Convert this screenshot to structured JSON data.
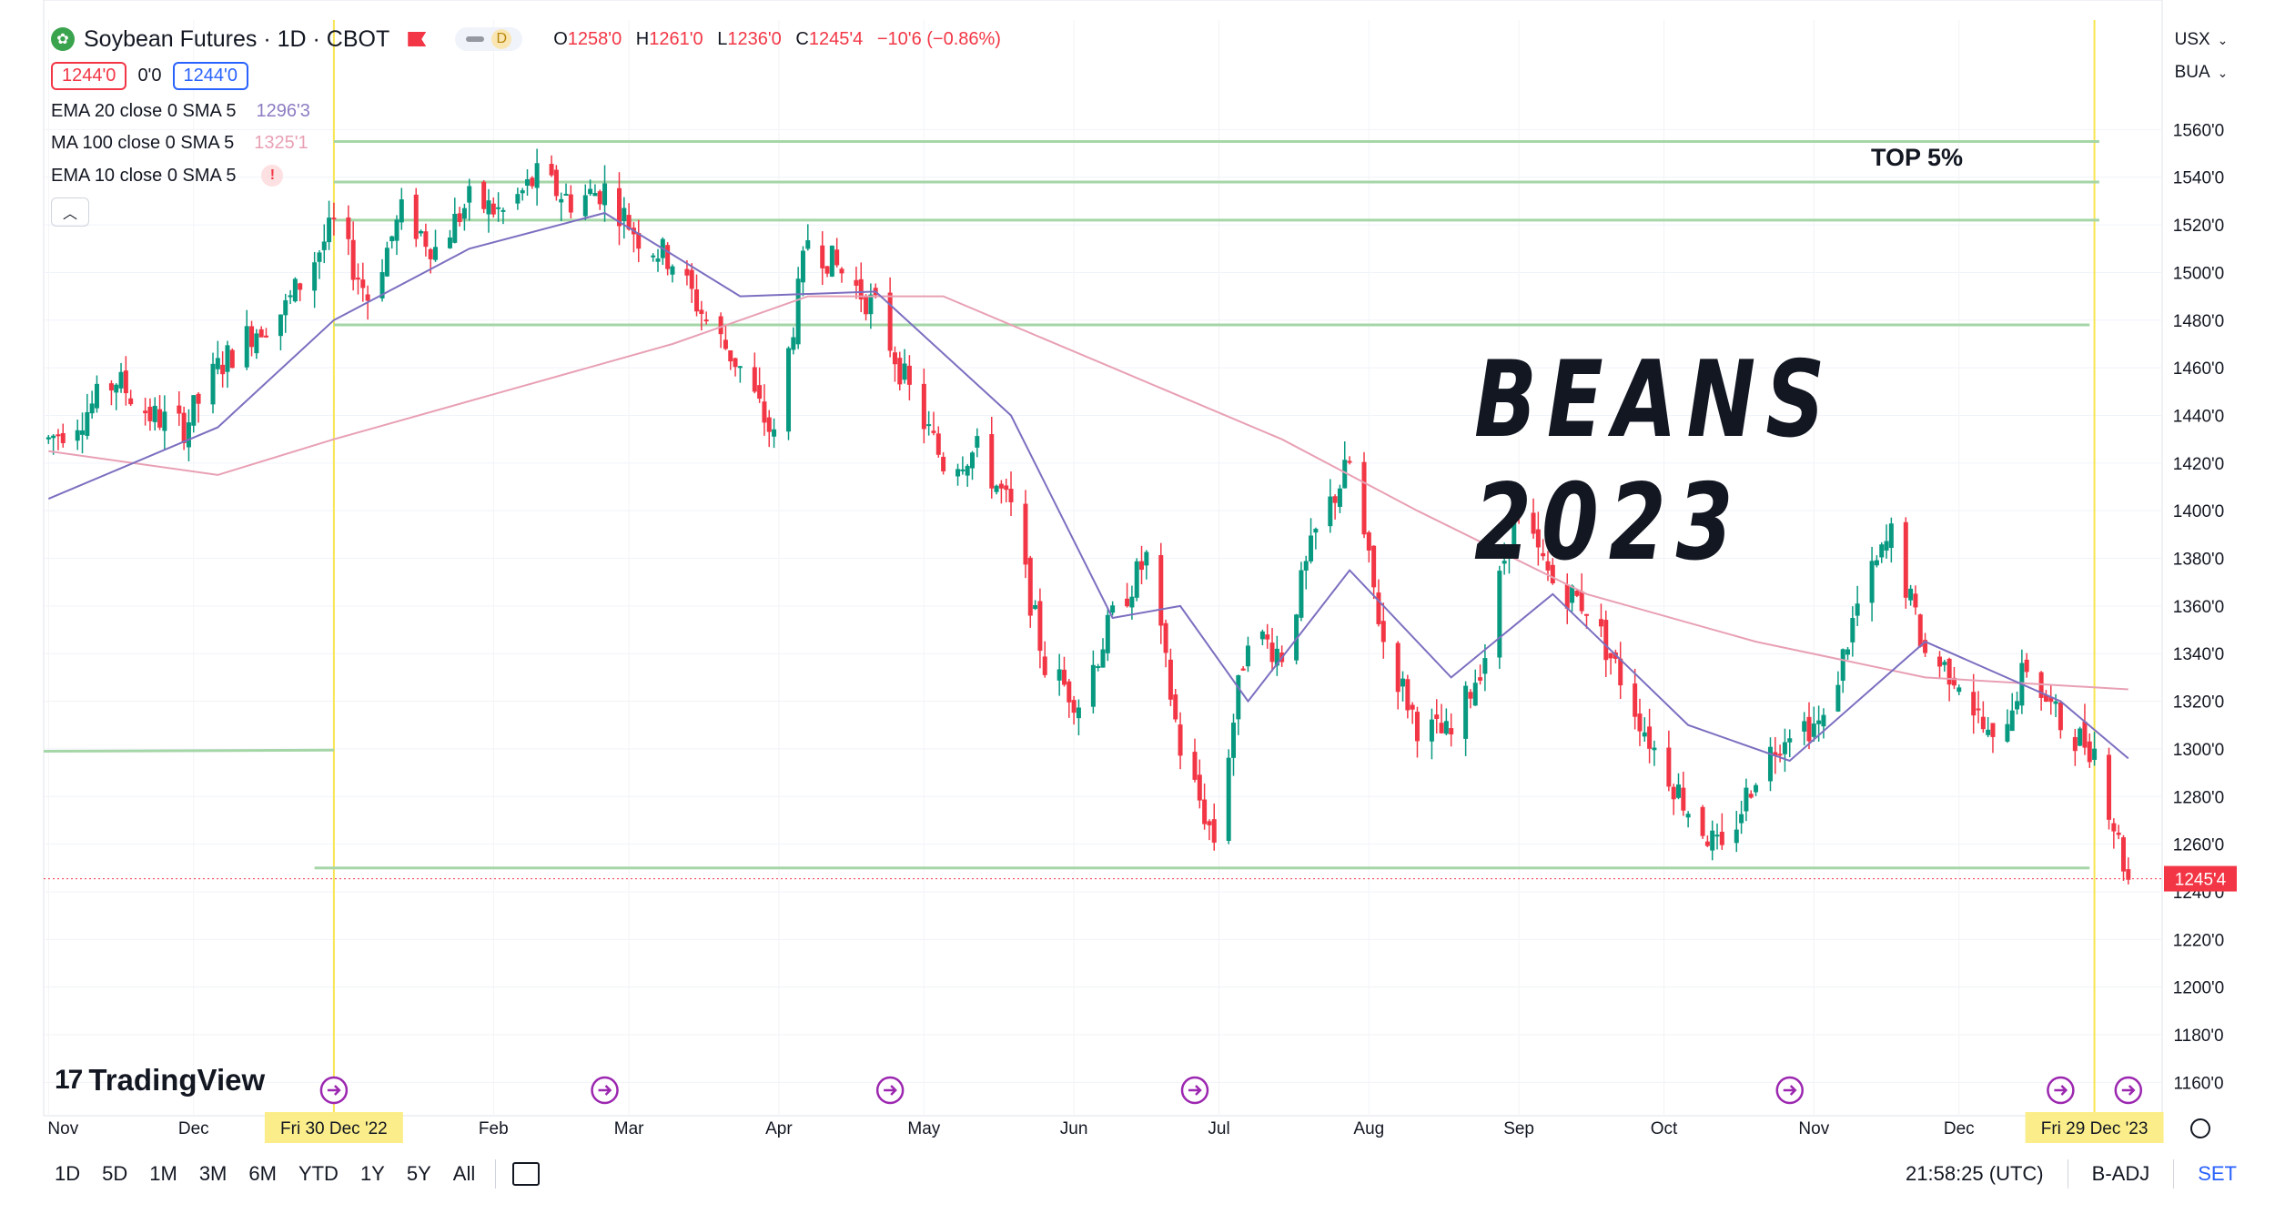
{
  "header": {
    "symbol_logo": "soybean-leaf-icon",
    "title": "Soybean Futures · 1D · CBOT",
    "pill_letter": "D",
    "ohlc": [
      {
        "k": "O",
        "v": "1258'0"
      },
      {
        "k": "H",
        "v": "1261'0"
      },
      {
        "k": "L",
        "v": "1236'0"
      },
      {
        "k": "C",
        "v": "1245'4"
      }
    ],
    "change": "−10'6 (−0.86%)",
    "sell_price": "1244'0",
    "spread": "0'0",
    "buy_price": "1244'0"
  },
  "indicators": [
    {
      "name": "EMA",
      "params": "20 close 0 SMA 5",
      "value": "1296'3",
      "color": "#8e7cc3"
    },
    {
      "name": "MA",
      "params": "100 close 0 SMA 5",
      "value": "1325'1",
      "color": "#e8a0b4"
    },
    {
      "name": "EMA",
      "params": "10 close 0 SMA 5",
      "value": "",
      "warning": "!"
    }
  ],
  "overlay": {
    "big_title": "BEANS 2023",
    "top_label": "TOP 5%"
  },
  "axis_top": {
    "currency": "USX",
    "unit": "BUA"
  },
  "brand": "TradingView",
  "bottom_bar": {
    "timeframes": [
      "1D",
      "5D",
      "1M",
      "3M",
      "6M",
      "YTD",
      "1Y",
      "5Y",
      "All"
    ],
    "clock": "21:58:25 (UTC)",
    "adj": "B-ADJ",
    "session": "SET"
  },
  "colors": {
    "up": "#089981",
    "down": "#f23645",
    "ema": "#7b6fc0",
    "ma": "#e8a0b4",
    "level": "#a5d6a7",
    "marker": "#f7e652"
  },
  "chart_data": {
    "type": "candlestick",
    "y_ticks": [
      "1560'0",
      "1540'0",
      "1520'0",
      "1500'0",
      "1480'0",
      "1460'0",
      "1440'0",
      "1420'0",
      "1400'0",
      "1380'0",
      "1360'0",
      "1340'0",
      "1320'0",
      "1300'0",
      "1280'0",
      "1260'0",
      "1240'0",
      "1220'0",
      "1200'0",
      "1180'0",
      "1160'0"
    ],
    "ylim": [
      1146,
      1606
    ],
    "x_months": [
      "Nov",
      "Dec",
      "Feb",
      "Mar",
      "Apr",
      "May",
      "Jun",
      "Jul",
      "Aug",
      "Sep",
      "Oct",
      "Nov",
      "Dec"
    ],
    "x_highlights": [
      "Fri 30 Dec '22",
      "Fri 29 Dec '23"
    ],
    "last_price_label": "1245'4",
    "last_price": 1245.5,
    "horizontal_levels": [
      1555,
      1538,
      1522,
      1478,
      1250
    ],
    "close_path": [
      {
        "d": "2022-11-01",
        "c": 1430
      },
      {
        "d": "2022-11-08",
        "c": 1440
      },
      {
        "d": "2022-11-15",
        "c": 1455
      },
      {
        "d": "2022-11-22",
        "c": 1440
      },
      {
        "d": "2022-11-29",
        "c": 1435
      },
      {
        "d": "2022-12-06",
        "c": 1460
      },
      {
        "d": "2022-12-13",
        "c": 1475
      },
      {
        "d": "2022-12-20",
        "c": 1485
      },
      {
        "d": "2022-12-30",
        "c": 1520
      },
      {
        "d": "2023-01-06",
        "c": 1490
      },
      {
        "d": "2023-01-13",
        "c": 1525
      },
      {
        "d": "2023-01-20",
        "c": 1510
      },
      {
        "d": "2023-01-27",
        "c": 1530
      },
      {
        "d": "2023-02-03",
        "c": 1525
      },
      {
        "d": "2023-02-10",
        "c": 1540
      },
      {
        "d": "2023-02-17",
        "c": 1530
      },
      {
        "d": "2023-02-24",
        "c": 1535
      },
      {
        "d": "2023-03-03",
        "c": 1515
      },
      {
        "d": "2023-03-10",
        "c": 1505
      },
      {
        "d": "2023-03-17",
        "c": 1480
      },
      {
        "d": "2023-03-24",
        "c": 1460
      },
      {
        "d": "2023-03-31",
        "c": 1430
      },
      {
        "d": "2023-04-07",
        "c": 1515
      },
      {
        "d": "2023-04-14",
        "c": 1500
      },
      {
        "d": "2023-04-21",
        "c": 1485
      },
      {
        "d": "2023-04-28",
        "c": 1450
      },
      {
        "d": "2023-05-05",
        "c": 1420
      },
      {
        "d": "2023-05-12",
        "c": 1425
      },
      {
        "d": "2023-05-19",
        "c": 1400
      },
      {
        "d": "2023-05-26",
        "c": 1335
      },
      {
        "d": "2023-06-02",
        "c": 1320
      },
      {
        "d": "2023-06-09",
        "c": 1355
      },
      {
        "d": "2023-06-16",
        "c": 1380
      },
      {
        "d": "2023-06-23",
        "c": 1300
      },
      {
        "d": "2023-06-30",
        "c": 1262
      },
      {
        "d": "2023-07-07",
        "c": 1350
      },
      {
        "d": "2023-07-14",
        "c": 1340
      },
      {
        "d": "2023-07-21",
        "c": 1390
      },
      {
        "d": "2023-07-28",
        "c": 1420
      },
      {
        "d": "2023-08-04",
        "c": 1345
      },
      {
        "d": "2023-08-11",
        "c": 1310
      },
      {
        "d": "2023-08-18",
        "c": 1305
      },
      {
        "d": "2023-08-25",
        "c": 1340
      },
      {
        "d": "2023-08-31",
        "c": 1400
      },
      {
        "d": "2023-09-08",
        "c": 1370
      },
      {
        "d": "2023-09-15",
        "c": 1360
      },
      {
        "d": "2023-09-22",
        "c": 1330
      },
      {
        "d": "2023-09-29",
        "c": 1300
      },
      {
        "d": "2023-10-06",
        "c": 1275
      },
      {
        "d": "2023-10-13",
        "c": 1255
      },
      {
        "d": "2023-10-20",
        "c": 1290
      },
      {
        "d": "2023-10-27",
        "c": 1310
      },
      {
        "d": "2023-11-03",
        "c": 1310
      },
      {
        "d": "2023-11-10",
        "c": 1360
      },
      {
        "d": "2023-11-17",
        "c": 1390
      },
      {
        "d": "2023-11-24",
        "c": 1340
      },
      {
        "d": "2023-12-01",
        "c": 1330
      },
      {
        "d": "2023-12-08",
        "c": 1300
      },
      {
        "d": "2023-12-15",
        "c": 1335
      },
      {
        "d": "2023-12-22",
        "c": 1310
      },
      {
        "d": "2023-12-29",
        "c": 1300
      },
      {
        "d": "2024-01-05",
        "c": 1245
      }
    ],
    "ema20_path": [
      {
        "d": "2022-11-01",
        "c": 1405
      },
      {
        "d": "2022-12-06",
        "c": 1435
      },
      {
        "d": "2022-12-30",
        "c": 1480
      },
      {
        "d": "2023-01-27",
        "c": 1510
      },
      {
        "d": "2023-02-24",
        "c": 1525
      },
      {
        "d": "2023-03-24",
        "c": 1490
      },
      {
        "d": "2023-04-21",
        "c": 1492
      },
      {
        "d": "2023-05-19",
        "c": 1440
      },
      {
        "d": "2023-06-09",
        "c": 1355
      },
      {
        "d": "2023-06-23",
        "c": 1360
      },
      {
        "d": "2023-07-07",
        "c": 1320
      },
      {
        "d": "2023-07-28",
        "c": 1375
      },
      {
        "d": "2023-08-18",
        "c": 1330
      },
      {
        "d": "2023-09-08",
        "c": 1365
      },
      {
        "d": "2023-10-06",
        "c": 1310
      },
      {
        "d": "2023-10-27",
        "c": 1295
      },
      {
        "d": "2023-11-24",
        "c": 1345
      },
      {
        "d": "2023-12-22",
        "c": 1320
      },
      {
        "d": "2024-01-05",
        "c": 1296
      }
    ],
    "ma100_path": [
      {
        "d": "2022-11-01",
        "c": 1425
      },
      {
        "d": "2022-12-06",
        "c": 1415
      },
      {
        "d": "2022-12-30",
        "c": 1430
      },
      {
        "d": "2023-02-03",
        "c": 1450
      },
      {
        "d": "2023-03-10",
        "c": 1470
      },
      {
        "d": "2023-04-07",
        "c": 1490
      },
      {
        "d": "2023-05-05",
        "c": 1490
      },
      {
        "d": "2023-06-09",
        "c": 1460
      },
      {
        "d": "2023-07-14",
        "c": 1430
      },
      {
        "d": "2023-08-11",
        "c": 1400
      },
      {
        "d": "2023-09-15",
        "c": 1365
      },
      {
        "d": "2023-10-20",
        "c": 1345
      },
      {
        "d": "2023-11-24",
        "c": 1330
      },
      {
        "d": "2024-01-05",
        "c": 1325
      }
    ]
  }
}
